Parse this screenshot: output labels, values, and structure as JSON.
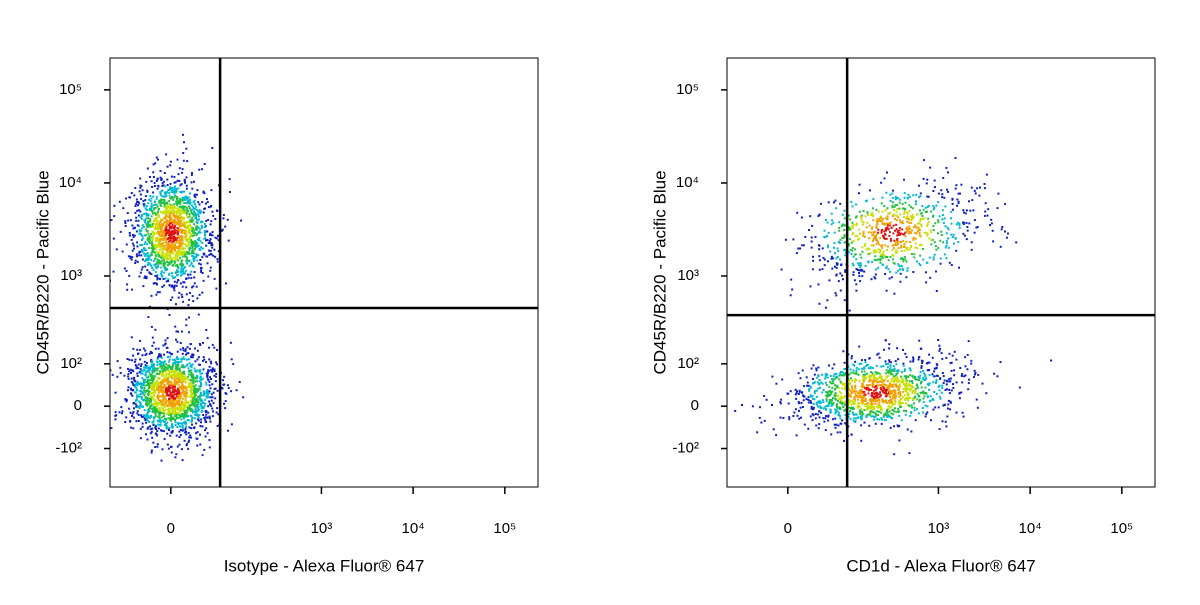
{
  "chart_data": [
    {
      "type": "scatter",
      "x_label": "Isotype - Alexa Fluor® 647",
      "y_label": "CD45R/B220 - Pacific Blue",
      "scale": "arcsinh",
      "xlim": [
        -100,
        230000
      ],
      "ylim": [
        -290,
        220000
      ],
      "xticks": [
        0,
        {
          "value": 1000,
          "label": "10³"
        },
        {
          "value": 10000,
          "label": "10⁴"
        },
        {
          "value": 100000,
          "label": "10⁵"
        }
      ],
      "yticks": [
        {
          "value": -100,
          "label": "-10²"
        },
        0,
        {
          "value": 100,
          "label": "10²"
        },
        {
          "value": 1000,
          "label": "10³"
        },
        {
          "value": 10000,
          "label": "10⁴"
        },
        {
          "value": 100000,
          "label": "10⁵"
        }
      ],
      "gate": {
        "x": 72,
        "y": 450
      },
      "populations": [
        {
          "x": 0,
          "y": 3000
        },
        {
          "x": 0,
          "y": 30
        }
      ]
    },
    {
      "type": "scatter",
      "x_label": "CD1d - Alexa Fluor® 647",
      "y_label": "CD45R/B220 - Pacific Blue",
      "scale": "arcsinh",
      "xlim": [
        -100,
        230000
      ],
      "ylim": [
        -290,
        220000
      ],
      "xticks": [
        0,
        {
          "value": 1000,
          "label": "10³"
        },
        {
          "value": 10000,
          "label": "10⁴"
        },
        {
          "value": 100000,
          "label": "10⁵"
        }
      ],
      "yticks": [
        {
          "value": -100,
          "label": "-10²"
        },
        0,
        {
          "value": 100,
          "label": "10²"
        },
        {
          "value": 1000,
          "label": "10³"
        },
        {
          "value": 10000,
          "label": "10⁴"
        },
        {
          "value": 100000,
          "label": "10⁵"
        }
      ],
      "gate": {
        "x": 96,
        "y": 376
      },
      "populations": [
        {
          "x": 300,
          "y": 3000
        },
        {
          "x": 200,
          "y": 30
        }
      ]
    }
  ]
}
